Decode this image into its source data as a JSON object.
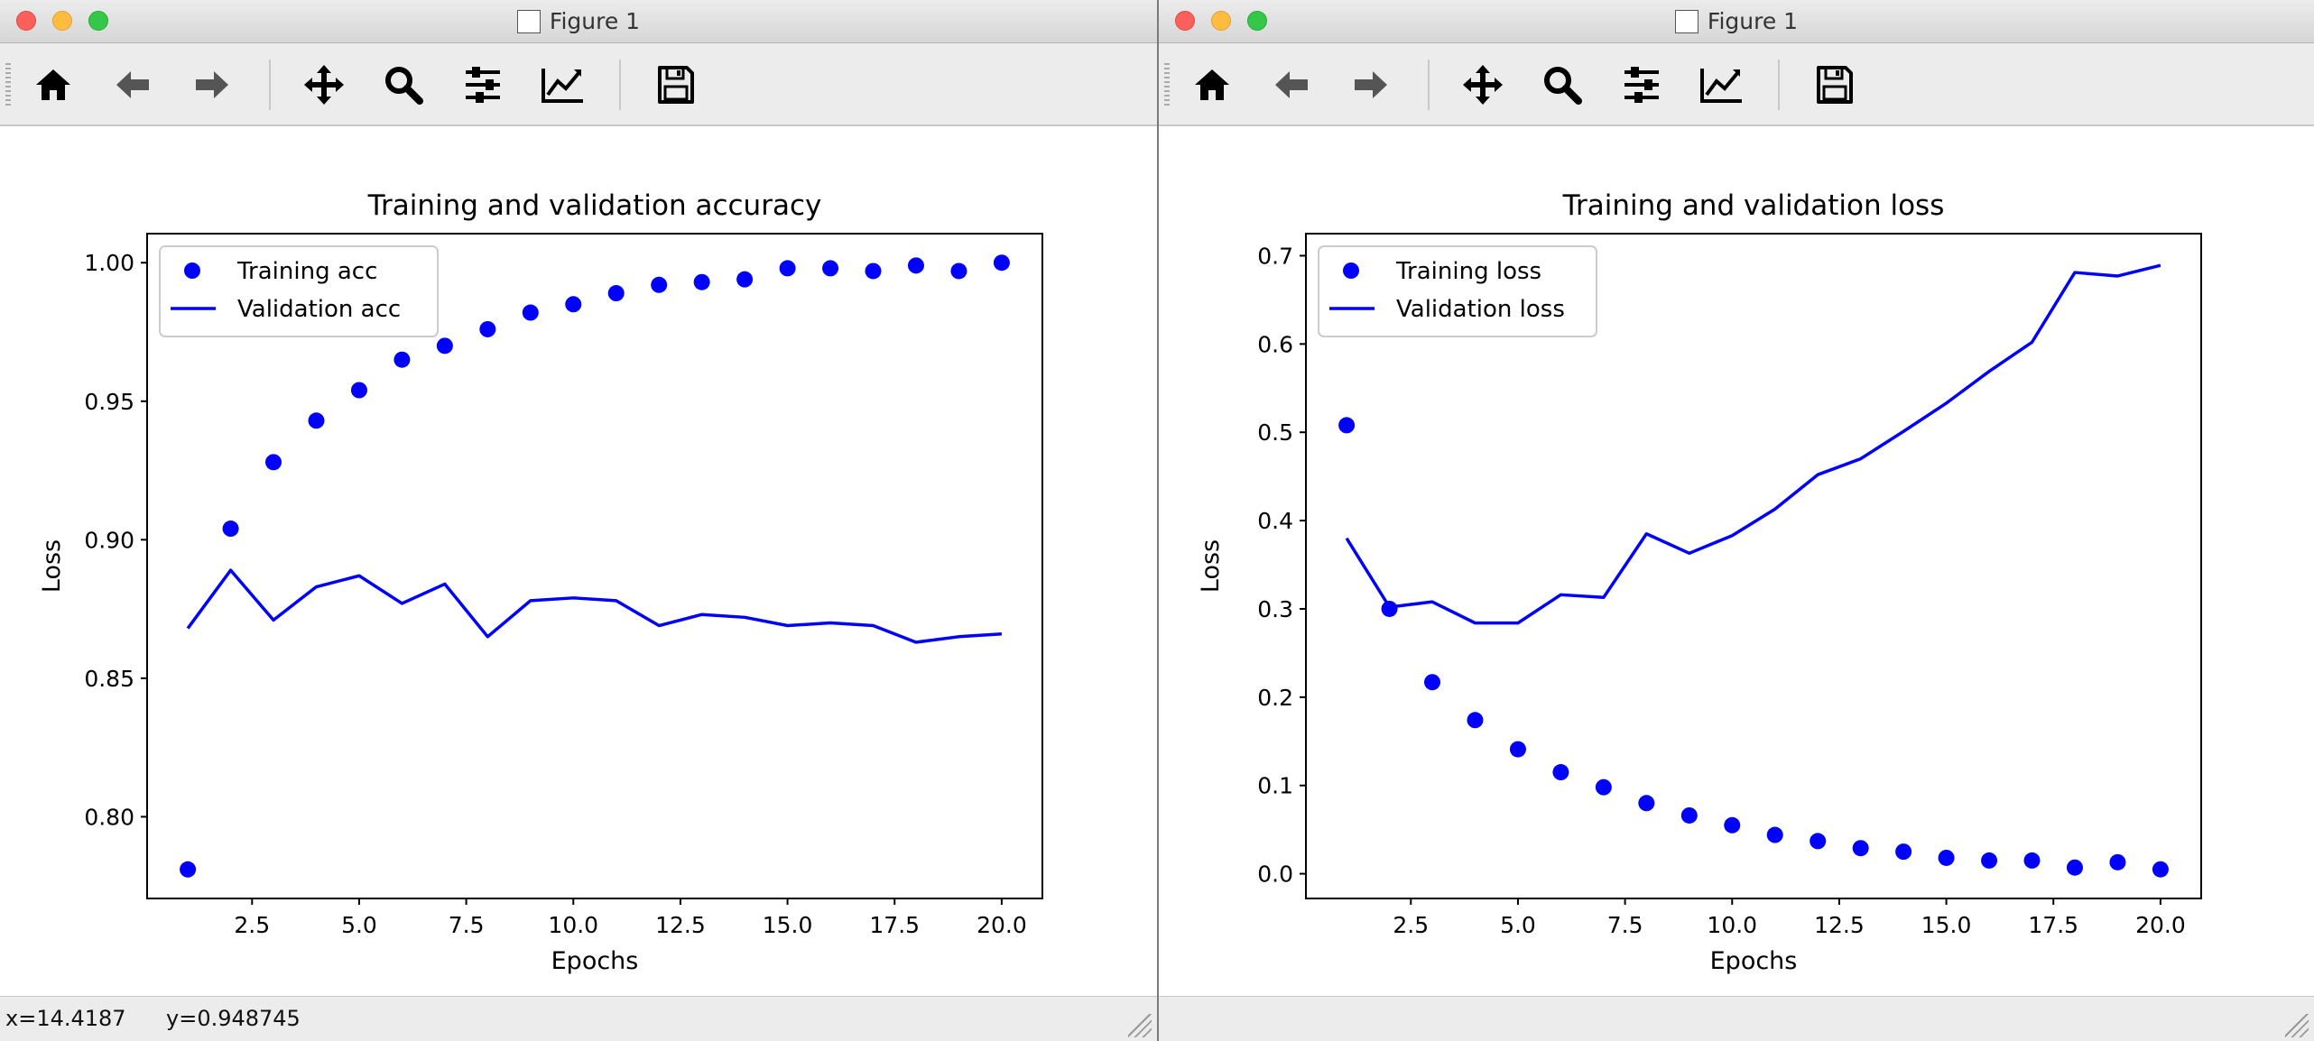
{
  "colors": {
    "series": "#0000ff",
    "titlebar": "#e3e3e3",
    "toolbar": "#ececec",
    "close": "#fc605c",
    "minimize": "#fdbc40",
    "maximize": "#34c84a"
  },
  "toolbar_icons": [
    "home-icon",
    "back-arrow-icon",
    "forward-arrow-icon",
    "pan-icon",
    "zoom-icon",
    "configure-subplots-icon",
    "edit-axis-icon",
    "save-icon"
  ],
  "windows": [
    {
      "title": "Figure 1",
      "status": {
        "x": "x=14.4187",
        "y": "y=0.948745"
      }
    },
    {
      "title": "Figure 1",
      "status": {
        "x": "",
        "y": ""
      }
    }
  ],
  "chart_data": [
    {
      "type": "scatter+line",
      "title": "Training and validation accuracy",
      "xlabel": "Epochs",
      "ylabel": "Loss",
      "xlim": [
        0.05,
        20.95
      ],
      "ylim": [
        0.7705,
        1.0105
      ],
      "xticks": [
        2.5,
        5.0,
        7.5,
        10.0,
        12.5,
        15.0,
        17.5,
        20.0
      ],
      "xtick_labels": [
        "2.5",
        "5.0",
        "7.5",
        "10.0",
        "12.5",
        "15.0",
        "17.5",
        "20.0"
      ],
      "yticks": [
        0.8,
        0.85,
        0.9,
        0.95,
        1.0
      ],
      "ytick_labels": [
        "0.80",
        "0.85",
        "0.90",
        "0.95",
        "1.00"
      ],
      "legend": "upper-left",
      "grid": false,
      "x": [
        1,
        2,
        3,
        4,
        5,
        6,
        7,
        8,
        9,
        10,
        11,
        12,
        13,
        14,
        15,
        16,
        17,
        18,
        19,
        20
      ],
      "series": [
        {
          "name": "Training acc",
          "style": "dots",
          "values": [
            0.781,
            0.904,
            0.928,
            0.943,
            0.954,
            0.965,
            0.97,
            0.976,
            0.982,
            0.985,
            0.989,
            0.992,
            0.993,
            0.994,
            0.998,
            0.998,
            0.997,
            0.999,
            0.997,
            1.0
          ]
        },
        {
          "name": "Validation acc",
          "style": "line",
          "values": [
            0.868,
            0.889,
            0.871,
            0.883,
            0.887,
            0.877,
            0.884,
            0.865,
            0.878,
            0.879,
            0.878,
            0.869,
            0.873,
            0.872,
            0.869,
            0.87,
            0.869,
            0.863,
            0.865,
            0.866
          ]
        }
      ]
    },
    {
      "type": "scatter+line",
      "title": "Training and validation loss",
      "xlabel": "Epochs",
      "ylabel": "Loss",
      "xlim": [
        0.05,
        20.95
      ],
      "ylim": [
        -0.028,
        0.725
      ],
      "xticks": [
        2.5,
        5.0,
        7.5,
        10.0,
        12.5,
        15.0,
        17.5,
        20.0
      ],
      "xtick_labels": [
        "2.5",
        "5.0",
        "7.5",
        "10.0",
        "12.5",
        "15.0",
        "17.5",
        "20.0"
      ],
      "yticks": [
        0.0,
        0.1,
        0.2,
        0.3,
        0.4,
        0.5,
        0.6,
        0.7
      ],
      "ytick_labels": [
        "0.0",
        "0.1",
        "0.2",
        "0.3",
        "0.4",
        "0.5",
        "0.6",
        "0.7"
      ],
      "legend": "upper-left",
      "grid": false,
      "x": [
        1,
        2,
        3,
        4,
        5,
        6,
        7,
        8,
        9,
        10,
        11,
        12,
        13,
        14,
        15,
        16,
        17,
        18,
        19,
        20
      ],
      "series": [
        {
          "name": "Training loss",
          "style": "dots",
          "values": [
            0.508,
            0.3,
            0.217,
            0.174,
            0.141,
            0.115,
            0.098,
            0.08,
            0.066,
            0.055,
            0.044,
            0.037,
            0.029,
            0.025,
            0.018,
            0.015,
            0.015,
            0.007,
            0.013,
            0.005
          ]
        },
        {
          "name": "Validation loss",
          "style": "line",
          "values": [
            0.38,
            0.302,
            0.308,
            0.284,
            0.284,
            0.316,
            0.313,
            0.385,
            0.363,
            0.383,
            0.413,
            0.452,
            0.47,
            0.501,
            0.533,
            0.569,
            0.602,
            0.681,
            0.677,
            0.689
          ]
        }
      ]
    }
  ]
}
